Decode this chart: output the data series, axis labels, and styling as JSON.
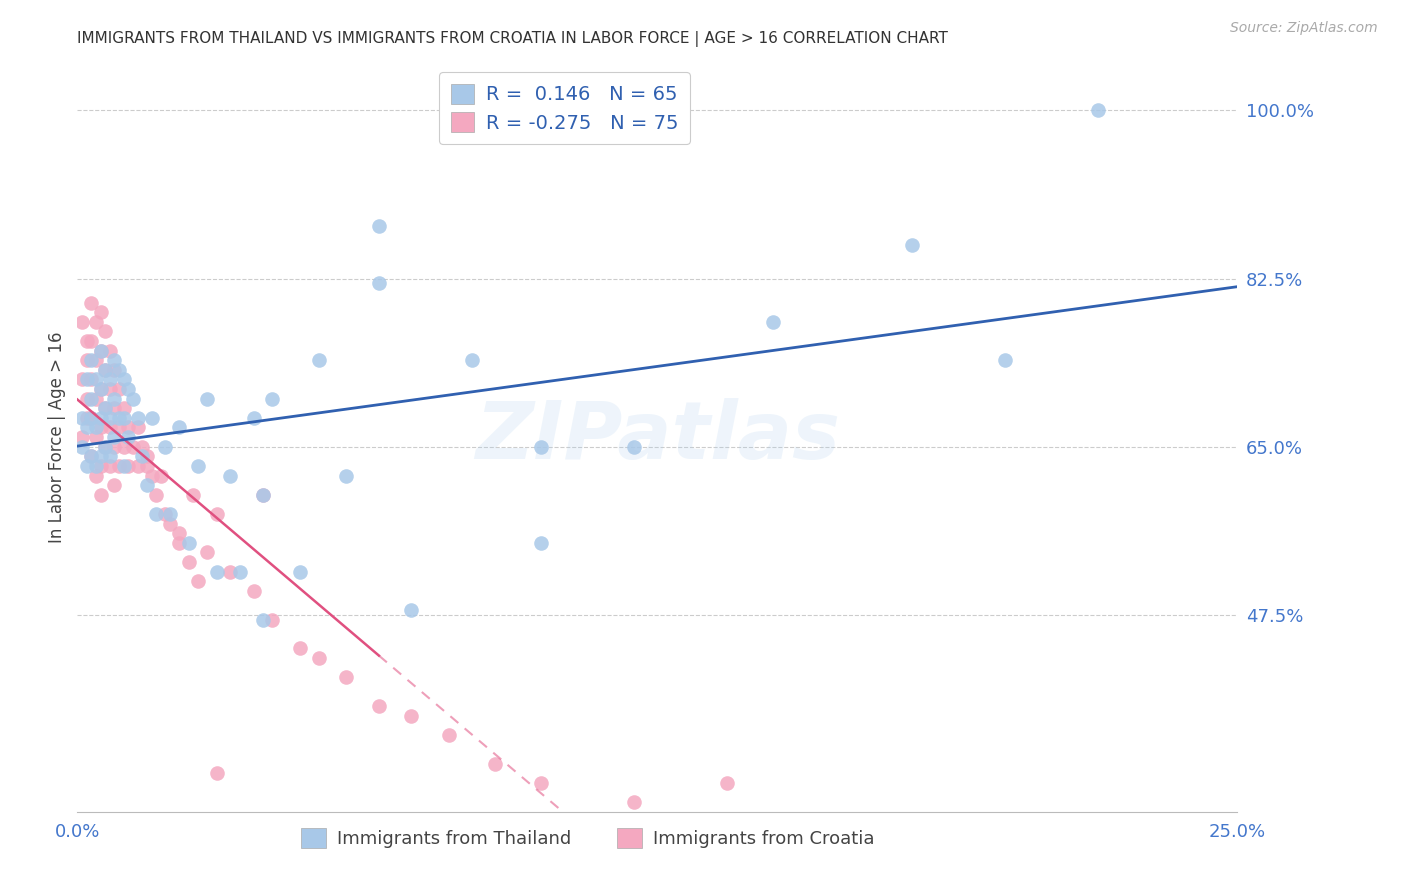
{
  "title": "IMMIGRANTS FROM THAILAND VS IMMIGRANTS FROM CROATIA IN LABOR FORCE | AGE > 16 CORRELATION CHART",
  "source": "Source: ZipAtlas.com",
  "ylabel": "In Labor Force | Age > 16",
  "xlim": [
    0.0,
    0.25
  ],
  "ylim": [
    0.27,
    1.05
  ],
  "xtick_positions": [
    0.0,
    0.05,
    0.1,
    0.15,
    0.2,
    0.25
  ],
  "xticklabels": [
    "0.0%",
    "",
    "",
    "",
    "",
    "25.0%"
  ],
  "yticks_right": [
    1.0,
    0.825,
    0.65,
    0.475
  ],
  "ytick_labels_right": [
    "100.0%",
    "82.5%",
    "65.0%",
    "47.5%"
  ],
  "legend_upper_labels": [
    "R =  0.146   N = 65",
    "R = -0.275   N = 75"
  ],
  "legend_lower_labels": [
    "Immigrants from Thailand",
    "Immigrants from Croatia"
  ],
  "watermark": "ZIPatlas",
  "thailand_color": "#a8c8e8",
  "croatia_color": "#f4a8c0",
  "thailand_line_color": "#3060b0",
  "croatia_line_color": "#e05080",
  "background_color": "#ffffff",
  "grid_color": "#cccccc",
  "axis_color": "#4477CC",
  "title_color": "#333333",
  "legend_text_color": "#3060b0",
  "thailand_scatter_x": [
    0.001,
    0.001,
    0.002,
    0.002,
    0.002,
    0.003,
    0.003,
    0.003,
    0.003,
    0.004,
    0.004,
    0.004,
    0.005,
    0.005,
    0.005,
    0.005,
    0.006,
    0.006,
    0.006,
    0.007,
    0.007,
    0.007,
    0.008,
    0.008,
    0.008,
    0.009,
    0.009,
    0.01,
    0.01,
    0.01,
    0.011,
    0.011,
    0.012,
    0.013,
    0.014,
    0.015,
    0.016,
    0.017,
    0.019,
    0.02,
    0.022,
    0.024,
    0.026,
    0.028,
    0.033,
    0.035,
    0.038,
    0.04,
    0.042,
    0.048,
    0.052,
    0.058,
    0.065,
    0.072,
    0.085,
    0.1,
    0.1,
    0.12,
    0.15,
    0.18,
    0.2,
    0.22,
    0.065,
    0.04,
    0.03
  ],
  "thailand_scatter_y": [
    0.65,
    0.68,
    0.72,
    0.67,
    0.63,
    0.7,
    0.74,
    0.68,
    0.64,
    0.72,
    0.67,
    0.63,
    0.71,
    0.75,
    0.68,
    0.64,
    0.73,
    0.69,
    0.65,
    0.72,
    0.68,
    0.64,
    0.74,
    0.7,
    0.66,
    0.73,
    0.68,
    0.72,
    0.68,
    0.63,
    0.71,
    0.66,
    0.7,
    0.68,
    0.64,
    0.61,
    0.68,
    0.58,
    0.65,
    0.58,
    0.67,
    0.55,
    0.63,
    0.7,
    0.62,
    0.52,
    0.68,
    0.6,
    0.7,
    0.52,
    0.74,
    0.62,
    0.88,
    0.48,
    0.74,
    0.65,
    0.55,
    0.65,
    0.78,
    0.86,
    0.74,
    1.0,
    0.82,
    0.47,
    0.52
  ],
  "croatia_scatter_x": [
    0.001,
    0.001,
    0.001,
    0.002,
    0.002,
    0.002,
    0.002,
    0.003,
    0.003,
    0.003,
    0.003,
    0.003,
    0.004,
    0.004,
    0.004,
    0.004,
    0.004,
    0.005,
    0.005,
    0.005,
    0.005,
    0.005,
    0.005,
    0.006,
    0.006,
    0.006,
    0.006,
    0.007,
    0.007,
    0.007,
    0.007,
    0.008,
    0.008,
    0.008,
    0.008,
    0.009,
    0.009,
    0.009,
    0.01,
    0.01,
    0.011,
    0.011,
    0.012,
    0.013,
    0.013,
    0.014,
    0.015,
    0.016,
    0.017,
    0.019,
    0.02,
    0.022,
    0.024,
    0.026,
    0.028,
    0.033,
    0.038,
    0.042,
    0.048,
    0.052,
    0.058,
    0.065,
    0.072,
    0.08,
    0.09,
    0.1,
    0.12,
    0.14,
    0.04,
    0.03,
    0.025,
    0.018,
    0.015,
    0.022,
    0.03
  ],
  "croatia_scatter_y": [
    0.66,
    0.72,
    0.78,
    0.74,
    0.7,
    0.76,
    0.68,
    0.8,
    0.76,
    0.72,
    0.68,
    0.64,
    0.78,
    0.74,
    0.7,
    0.66,
    0.62,
    0.79,
    0.75,
    0.71,
    0.67,
    0.63,
    0.6,
    0.77,
    0.73,
    0.69,
    0.65,
    0.75,
    0.71,
    0.67,
    0.63,
    0.73,
    0.69,
    0.65,
    0.61,
    0.71,
    0.67,
    0.63,
    0.69,
    0.65,
    0.67,
    0.63,
    0.65,
    0.67,
    0.63,
    0.65,
    0.63,
    0.62,
    0.6,
    0.58,
    0.57,
    0.55,
    0.53,
    0.51,
    0.54,
    0.52,
    0.5,
    0.47,
    0.44,
    0.43,
    0.41,
    0.38,
    0.37,
    0.35,
    0.32,
    0.3,
    0.28,
    0.3,
    0.6,
    0.58,
    0.6,
    0.62,
    0.64,
    0.56,
    0.31
  ]
}
